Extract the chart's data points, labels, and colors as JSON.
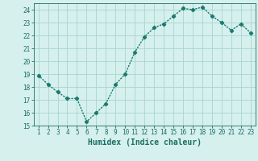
{
  "x": [
    1,
    2,
    3,
    4,
    5,
    6,
    7,
    8,
    9,
    10,
    11,
    12,
    13,
    14,
    15,
    16,
    17,
    18,
    19,
    20,
    21,
    22,
    23
  ],
  "y": [
    18.9,
    18.2,
    17.6,
    17.1,
    17.1,
    15.3,
    16.0,
    16.7,
    18.2,
    19.0,
    20.7,
    21.9,
    22.6,
    22.9,
    23.5,
    24.1,
    24.0,
    24.2,
    23.5,
    23.0,
    22.4,
    22.9,
    22.2
  ],
  "line_color": "#1a7a6e",
  "marker": "D",
  "marker_size": 2.2,
  "bg_color": "#d6f0ee",
  "grid_color": "#a8d5cf",
  "xlabel": "Humidex (Indice chaleur)",
  "xlim": [
    0.5,
    23.5
  ],
  "ylim": [
    15,
    24.5
  ],
  "yticks": [
    15,
    16,
    17,
    18,
    19,
    20,
    21,
    22,
    23,
    24
  ],
  "xticks": [
    1,
    2,
    3,
    4,
    5,
    6,
    7,
    8,
    9,
    10,
    11,
    12,
    13,
    14,
    15,
    16,
    17,
    18,
    19,
    20,
    21,
    22,
    23
  ],
  "tick_color": "#1a6e62",
  "tick_fontsize": 5.5,
  "xlabel_fontsize": 7.0,
  "line_width": 1.0
}
